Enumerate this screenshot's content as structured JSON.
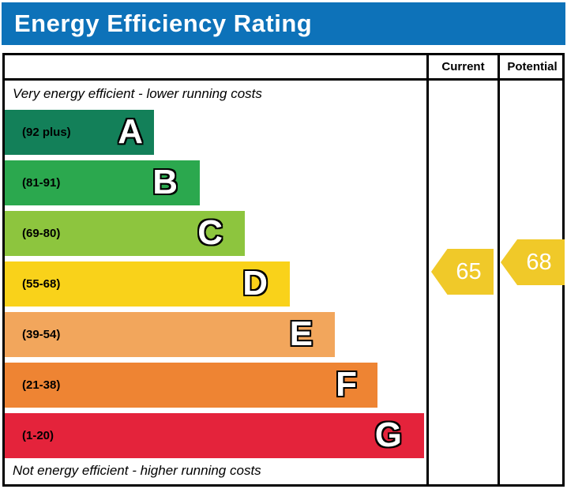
{
  "title": "Energy Efficiency Rating",
  "columns": {
    "current_label": "Current",
    "potential_label": "Potential"
  },
  "captions": {
    "top": "Very energy efficient - lower running costs",
    "bottom": "Not energy efficient - higher running costs"
  },
  "colors": {
    "title_bar": "#0d72b9",
    "arrow": "#f0c929",
    "band_a": "#138059",
    "band_b": "#2ba84e",
    "band_c": "#8dc53e",
    "band_d": "#f9d21a",
    "band_e": "#f2a65c",
    "band_f": "#ee8433",
    "band_g": "#e4233b"
  },
  "bands": [
    {
      "letter": "A",
      "range": "(92 plus)",
      "color": "#138059"
    },
    {
      "letter": "B",
      "range": "(81-91)",
      "color": "#2ba84e"
    },
    {
      "letter": "C",
      "range": "(69-80)",
      "color": "#8dc53e"
    },
    {
      "letter": "D",
      "range": "(55-68)",
      "color": "#f9d21a"
    },
    {
      "letter": "E",
      "range": "(39-54)",
      "color": "#f2a65c"
    },
    {
      "letter": "F",
      "range": "(21-38)",
      "color": "#ee8433"
    },
    {
      "letter": "G",
      "range": "(1-20)",
      "color": "#e4233b"
    }
  ],
  "scores": {
    "current": "65",
    "potential": "68"
  },
  "chart_data": {
    "type": "bar",
    "title": "Energy Efficiency Rating",
    "categories": [
      "A",
      "B",
      "C",
      "D",
      "E",
      "F",
      "G"
    ],
    "band_ranges": [
      "(92 plus)",
      "(81-91)",
      "(69-80)",
      "(55-68)",
      "(39-54)",
      "(21-38)",
      "(1-20)"
    ],
    "band_colors": [
      "#138059",
      "#2ba84e",
      "#8dc53e",
      "#f9d21a",
      "#f2a65c",
      "#ee8433",
      "#e4233b"
    ],
    "annotations": [
      "Very energy efficient - lower running costs",
      "Not energy efficient - higher running costs"
    ],
    "series": [
      {
        "name": "Current",
        "value": 65,
        "band": "D",
        "marker_color": "#f0c929"
      },
      {
        "name": "Potential",
        "value": 68,
        "band": "D",
        "marker_color": "#f0c929"
      }
    ]
  }
}
